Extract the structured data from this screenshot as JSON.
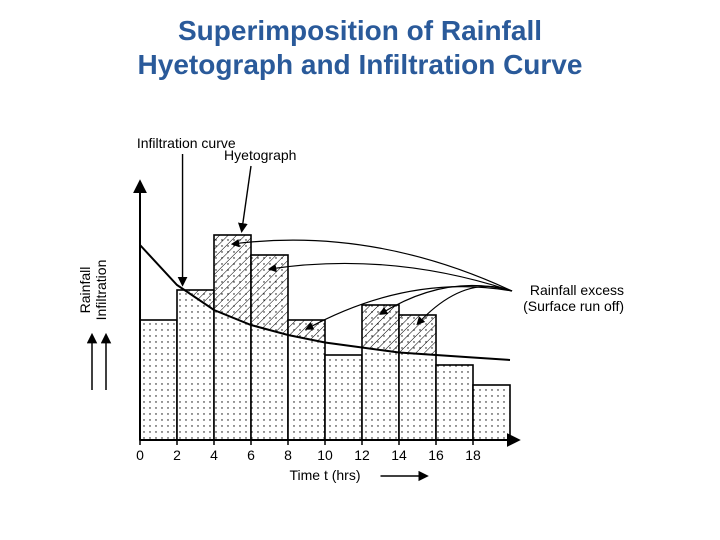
{
  "title_line1": "Superimposition of Rainfall",
  "title_line2": "Hyetograph and Infiltration Curve",
  "title_color": "#2a5a9a",
  "title_fontsize": 28,
  "chart": {
    "type": "bar+curve-overlay",
    "xlabel": "Time t (hrs)",
    "ylabel_line1": "Rainfall",
    "ylabel_line2": "Infiltration",
    "label_fontsize": 14,
    "bar_outline": "#000000",
    "bar_fill": "#ffffff",
    "x_ticks": [
      0,
      2,
      4,
      6,
      8,
      10,
      12,
      14,
      16,
      18
    ],
    "xlim": [
      0,
      20
    ],
    "ylim": [
      0,
      100
    ],
    "bars": [
      {
        "x0": 0,
        "x1": 2,
        "h": 48
      },
      {
        "x0": 2,
        "x1": 4,
        "h": 60
      },
      {
        "x0": 4,
        "x1": 6,
        "h": 82
      },
      {
        "x0": 6,
        "x1": 8,
        "h": 74
      },
      {
        "x0": 8,
        "x1": 10,
        "h": 48
      },
      {
        "x0": 10,
        "x1": 12,
        "h": 34
      },
      {
        "x0": 12,
        "x1": 14,
        "h": 54
      },
      {
        "x0": 14,
        "x1": 16,
        "h": 50
      },
      {
        "x0": 16,
        "x1": 18,
        "h": 30
      },
      {
        "x0": 18,
        "x1": 20,
        "h": 22
      }
    ],
    "curve_points": [
      {
        "x": 0,
        "y": 78
      },
      {
        "x": 2,
        "y": 62
      },
      {
        "x": 4,
        "y": 52
      },
      {
        "x": 6,
        "y": 46
      },
      {
        "x": 8,
        "y": 42
      },
      {
        "x": 10,
        "y": 39
      },
      {
        "x": 12,
        "y": 37
      },
      {
        "x": 14,
        "y": 35
      },
      {
        "x": 16,
        "y": 34
      },
      {
        "x": 18,
        "y": 33
      },
      {
        "x": 20,
        "y": 32
      }
    ],
    "annotations": {
      "infiltration_curve": "Infiltration curve",
      "hyetograph": "Hyetograph",
      "rainfall_excess_l1": "Rainfall excess",
      "rainfall_excess_l2": "(Surface run off)"
    },
    "stroke_width": 1.6,
    "hatch_spacing": 6
  }
}
